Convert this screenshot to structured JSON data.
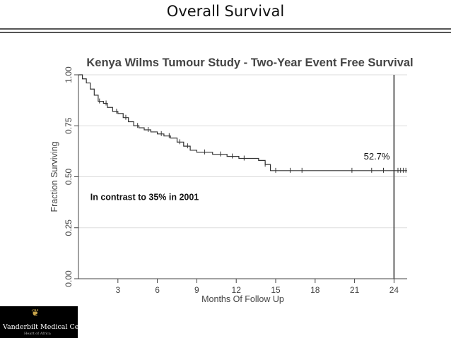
{
  "slide": {
    "title": "Overall Survival",
    "logo_text": "Vanderbilt Medical Center",
    "logo_subtext": "Heart of Africa"
  },
  "chart_data": {
    "type": "line",
    "title": "Kenya Wilms Tumour Study - Two-Year Event Free Survival",
    "xlabel": "Months Of Follow Up",
    "ylabel": "Fraction Surviving",
    "xlim": [
      0,
      25
    ],
    "ylim": [
      0,
      1
    ],
    "xticks": [
      3,
      6,
      9,
      12,
      15,
      18,
      21,
      24
    ],
    "yticks": [
      "0.00",
      "0.25",
      "0.50",
      "0.75",
      "1.00"
    ],
    "grid": "horizontal",
    "reference_line_x": 24,
    "line_color": "#333333",
    "series": [
      {
        "x": [
          0,
          0.3,
          0.6,
          0.9,
          1.2,
          1.5,
          1.9,
          2.2,
          2.6,
          3.0,
          3.4,
          3.8,
          4.2,
          4.6,
          5.0,
          5.5,
          6.0,
          6.5,
          7.0,
          7.5,
          8.0,
          8.5,
          9.0,
          10.2,
          11.3,
          12.2,
          13.7,
          14.2,
          14.6,
          25
        ],
        "y": [
          1.0,
          0.98,
          0.96,
          0.93,
          0.9,
          0.87,
          0.86,
          0.84,
          0.82,
          0.81,
          0.79,
          0.77,
          0.75,
          0.74,
          0.73,
          0.72,
          0.71,
          0.7,
          0.69,
          0.67,
          0.65,
          0.63,
          0.62,
          0.61,
          0.6,
          0.59,
          0.58,
          0.56,
          0.53,
          0.53
        ]
      }
    ],
    "censor_x": [
      1.6,
      2.1,
      2.9,
      3.6,
      4.5,
      5.3,
      6.3,
      6.9,
      7.7,
      8.3,
      9.6,
      10.8,
      11.7,
      12.6,
      14.2,
      15.0,
      16.1,
      17.0,
      20.8,
      22.3,
      23.2,
      24.3,
      24.5,
      24.7,
      24.9
    ],
    "annotations": [
      {
        "text": "52.7%",
        "x": 21.7,
        "y": 0.585
      },
      {
        "text": "In contrast to 35% in 2001",
        "x": 0.9,
        "y": 0.385
      }
    ]
  }
}
